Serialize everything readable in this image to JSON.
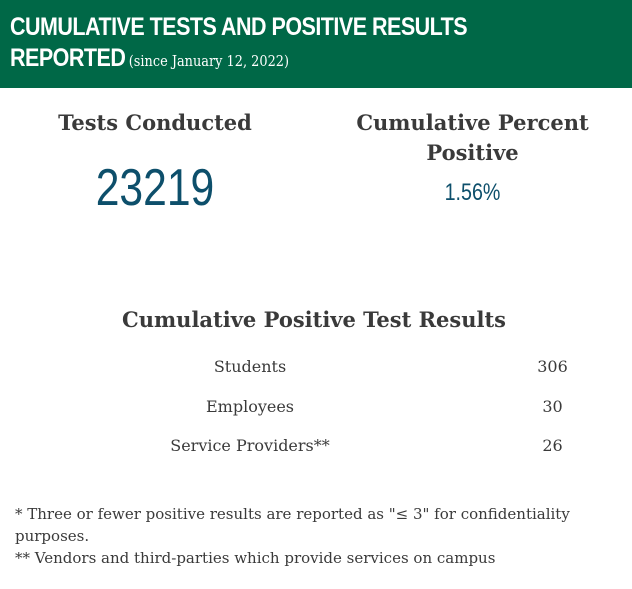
{
  "header": {
    "title_line1": "CUMULATIVE TESTS AND POSITIVE RESULTS",
    "title_line2": "REPORTED",
    "since": "(since January 12, 2022)",
    "background_color": "#006847"
  },
  "stats": {
    "tests_label": "Tests Conducted",
    "tests_value": "23219",
    "percent_label": "Cumulative Percent Positive",
    "percent_value": "1.56%",
    "value_color": "#0d4f6b"
  },
  "results": {
    "title": "Cumulative Positive Test Results",
    "rows": [
      {
        "label": "Students",
        "value": "306"
      },
      {
        "label": "Employees",
        "value": "30"
      },
      {
        "label": "Service Providers**",
        "value": "26"
      }
    ]
  },
  "footnotes": {
    "note1": "* Three or fewer positive results are reported as \"≤ 3\" for confidentiality purposes.",
    "note2": "** Vendors and third-parties which provide services on campus"
  }
}
